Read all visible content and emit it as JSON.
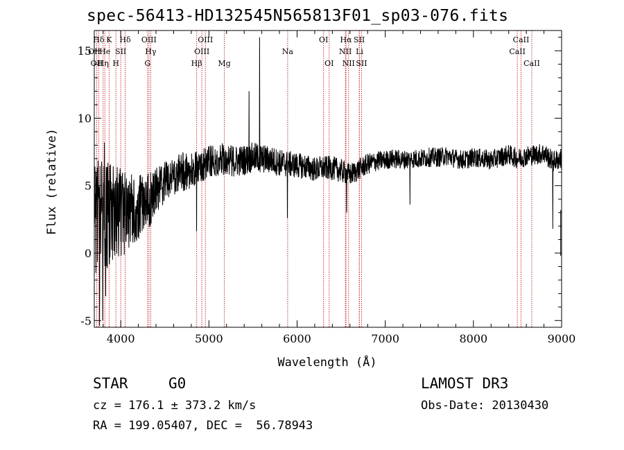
{
  "header": {
    "title": "spec-56413-HD132545N565813F01_sp03-076.fits"
  },
  "info": {
    "class": "STAR",
    "subclass": "G0",
    "survey": "LAMOST DR3",
    "cz": "cz = 176.1 ± 373.2 km/s",
    "obs_date": "Obs-Date: 20130430",
    "coords": "RA = 199.05407, DEC =  56.78943"
  },
  "chart_data": {
    "type": "line",
    "title": "spec-56413-HD132545N565813F01_sp03-076.fits",
    "xlabel": "Wavelength (Å)",
    "ylabel": "Flux (relative)",
    "xlim": [
      3700,
      9000
    ],
    "ylim": [
      -5.5,
      16.5
    ],
    "xticks": [
      4000,
      5000,
      6000,
      7000,
      8000,
      9000
    ],
    "yticks": [
      -5,
      0,
      5,
      10,
      15
    ],
    "line_color": "#000000",
    "marker_color": "#cc3333",
    "continuum": [
      [
        3700,
        2.5
      ],
      [
        3800,
        2.6
      ],
      [
        3900,
        2.8
      ],
      [
        4000,
        3.0
      ],
      [
        4100,
        3.0
      ],
      [
        4200,
        3.4
      ],
      [
        4300,
        3.8
      ],
      [
        4400,
        4.4
      ],
      [
        4500,
        5.2
      ],
      [
        4600,
        5.7
      ],
      [
        4700,
        6.0
      ],
      [
        4800,
        6.1
      ],
      [
        4900,
        6.5
      ],
      [
        5000,
        6.8
      ],
      [
        5100,
        6.9
      ],
      [
        5200,
        7.0
      ],
      [
        5300,
        6.8
      ],
      [
        5400,
        6.9
      ],
      [
        5500,
        7.1
      ],
      [
        5600,
        7.0
      ],
      [
        5700,
        6.9
      ],
      [
        5800,
        6.7
      ],
      [
        5900,
        6.6
      ],
      [
        6000,
        6.5
      ],
      [
        6100,
        6.4
      ],
      [
        6200,
        6.2
      ],
      [
        6300,
        6.3
      ],
      [
        6400,
        6.3
      ],
      [
        6500,
        6.1
      ],
      [
        6600,
        5.8
      ],
      [
        6700,
        6.2
      ],
      [
        6800,
        6.6
      ],
      [
        6900,
        6.8
      ],
      [
        7000,
        6.9
      ],
      [
        7100,
        7.0
      ],
      [
        7200,
        6.9
      ],
      [
        7300,
        7.0
      ],
      [
        7400,
        7.0
      ],
      [
        7500,
        7.1
      ],
      [
        7600,
        7.1
      ],
      [
        7700,
        7.2
      ],
      [
        7800,
        7.0
      ],
      [
        7900,
        6.9
      ],
      [
        8000,
        7.1
      ],
      [
        8100,
        7.0
      ],
      [
        8200,
        6.9
      ],
      [
        8300,
        7.1
      ],
      [
        8400,
        7.3
      ],
      [
        8500,
        7.0
      ],
      [
        8600,
        7.2
      ],
      [
        8700,
        7.3
      ],
      [
        8800,
        7.4
      ],
      [
        8900,
        6.8
      ],
      [
        9000,
        7.0
      ]
    ],
    "noise": [
      [
        3700,
        2.8
      ],
      [
        3900,
        2.4
      ],
      [
        4100,
        1.8
      ],
      [
        4300,
        1.4
      ],
      [
        4500,
        1.0
      ],
      [
        5000,
        0.8
      ],
      [
        5500,
        0.7
      ],
      [
        6000,
        0.6
      ],
      [
        6500,
        0.55
      ],
      [
        7000,
        0.45
      ],
      [
        8000,
        0.45
      ],
      [
        9000,
        0.5
      ]
    ],
    "features": [
      {
        "x": 3815,
        "y": 8.2
      },
      {
        "x": 3760,
        "y": -5.4
      },
      {
        "x": 3795,
        "y": -5.0
      },
      {
        "x": 3830,
        "y": -3.2
      },
      {
        "x": 4860,
        "y": 1.6
      },
      {
        "x": 5455,
        "y": 12.0
      },
      {
        "x": 5575,
        "y": 16.0
      },
      {
        "x": 5580,
        "y": 6.0
      },
      {
        "x": 5890,
        "y": 2.6
      },
      {
        "x": 6563,
        "y": 3.0
      },
      {
        "x": 7280,
        "y": 3.6
      },
      {
        "x": 8900,
        "y": 1.8
      }
    ],
    "lines": [
      {
        "label": "Hδ",
        "x": 3750,
        "row": 0
      },
      {
        "label": "K",
        "x": 3868,
        "row": 0
      },
      {
        "label": "Hδ",
        "x": 4050,
        "row": 0
      },
      {
        "label": "OIII",
        "x": 4320,
        "row": 0
      },
      {
        "label": "OIII",
        "x": 4960,
        "row": 0
      },
      {
        "label": "OI",
        "x": 6300,
        "row": 0
      },
      {
        "label": "Hα",
        "x": 6555,
        "row": 0
      },
      {
        "label": "SII",
        "x": 6705,
        "row": 0
      },
      {
        "label": "CaII",
        "x": 8540,
        "row": 0
      },
      {
        "label": "OII",
        "x": 3700,
        "row": 1
      },
      {
        "label": "He",
        "x": 3820,
        "row": 1
      },
      {
        "label": "SII",
        "x": 4000,
        "row": 1
      },
      {
        "label": "Hγ",
        "x": 4340,
        "row": 1
      },
      {
        "label": "OIII",
        "x": 4920,
        "row": 1
      },
      {
        "label": "Na",
        "x": 5893,
        "row": 1
      },
      {
        "label": "NII",
        "x": 6548,
        "row": 1
      },
      {
        "label": "Li",
        "x": 6708,
        "row": 1
      },
      {
        "label": "CaII",
        "x": 8498,
        "row": 1
      },
      {
        "label": "OII",
        "x": 3727,
        "row": 2
      },
      {
        "label": "Hη",
        "x": 3800,
        "row": 2
      },
      {
        "label": "H",
        "x": 3945,
        "row": 2
      },
      {
        "label": "G",
        "x": 4304,
        "row": 2
      },
      {
        "label": "Hβ",
        "x": 4861,
        "row": 2
      },
      {
        "label": "Mg",
        "x": 5175,
        "row": 2
      },
      {
        "label": "OI",
        "x": 6364,
        "row": 2
      },
      {
        "label": "NII",
        "x": 6584,
        "row": 2
      },
      {
        "label": "SII",
        "x": 6731,
        "row": 2
      },
      {
        "label": "CaII",
        "x": 8662,
        "row": 2
      }
    ]
  }
}
